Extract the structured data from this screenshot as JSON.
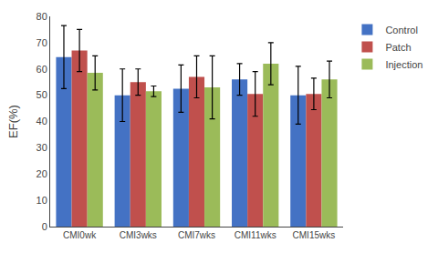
{
  "chart_data": {
    "type": "bar",
    "categories": [
      "CMI0wk",
      "CMI3wks",
      "CMI7wks",
      "CMI11wks",
      "CMI15wks"
    ],
    "series": [
      {
        "name": "Control",
        "color": "#4472C4",
        "values": [
          64.5,
          50.0,
          52.5,
          56.0,
          50.0
        ],
        "errors": [
          12.0,
          10.0,
          9.0,
          6.0,
          11.0
        ]
      },
      {
        "name": "Patch",
        "color": "#C0504D",
        "values": [
          67.0,
          55.0,
          57.0,
          50.5,
          50.5
        ],
        "errors": [
          8.0,
          5.0,
          8.0,
          8.5,
          6.0
        ]
      },
      {
        "name": "Injection",
        "color": "#9BBB59",
        "values": [
          58.5,
          51.5,
          53.0,
          62.0,
          56.0
        ],
        "errors": [
          6.5,
          2.0,
          12.0,
          8.0,
          7.0
        ]
      }
    ],
    "ylabel": "EF(%)",
    "ylim": [
      0,
      80
    ],
    "yticks": [
      0,
      10,
      20,
      30,
      40,
      50,
      60,
      70,
      80
    ],
    "grid": false,
    "legend": "right"
  }
}
